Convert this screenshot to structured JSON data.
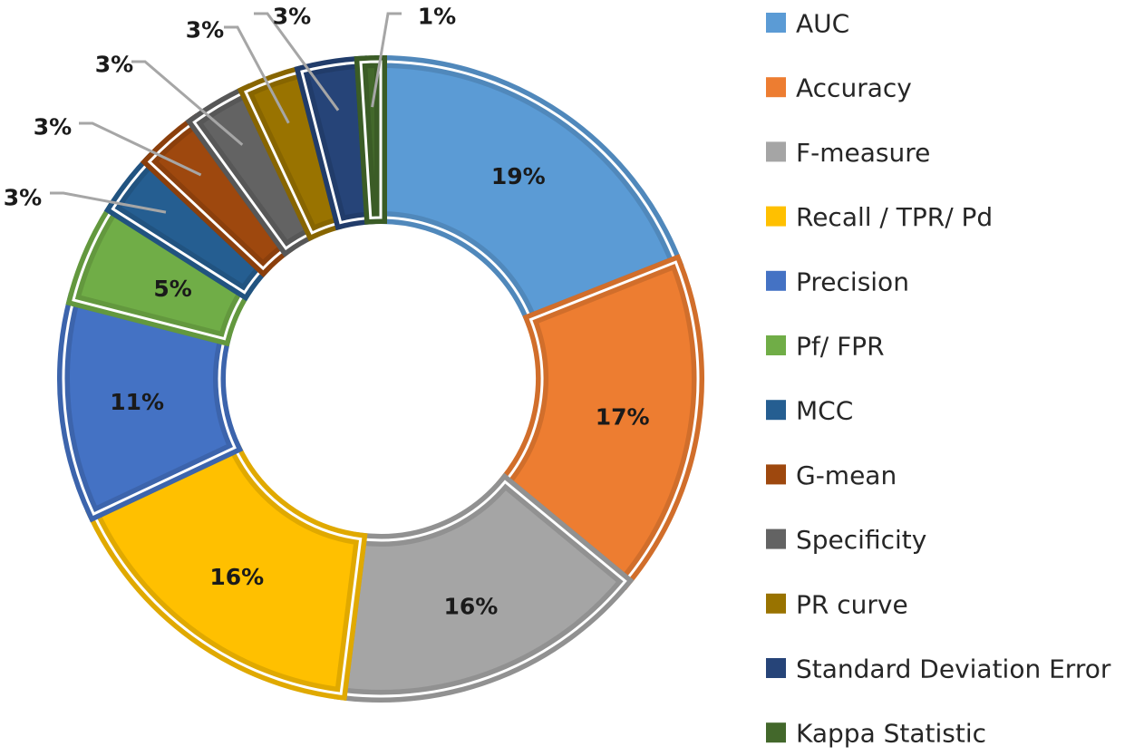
{
  "chart_data": {
    "type": "pie",
    "variant": "donut",
    "title": "",
    "legend_position": "right",
    "series": [
      {
        "name": "AUC",
        "value": 19,
        "label": "19%",
        "color": "#5b9bd5"
      },
      {
        "name": "Accuracy",
        "value": 17,
        "label": "17%",
        "color": "#ed7d31"
      },
      {
        "name": "F-measure",
        "value": 16,
        "label": "16%",
        "color": "#a5a5a5"
      },
      {
        "name": "Recall / TPR/ Pd",
        "value": 16,
        "label": "16%",
        "color": "#ffc000"
      },
      {
        "name": "Precision",
        "value": 11,
        "label": "11%",
        "color": "#4472c4"
      },
      {
        "name": "Pf/ FPR",
        "value": 5,
        "label": "5%",
        "color": "#70ad47"
      },
      {
        "name": "MCC",
        "value": 3,
        "label": "3%",
        "color": "#255e91"
      },
      {
        "name": "G-mean",
        "value": 3,
        "label": "3%",
        "color": "#9e480e"
      },
      {
        "name": "Specificity",
        "value": 3,
        "label": "3%",
        "color": "#636363"
      },
      {
        "name": "PR curve",
        "value": 3,
        "label": "3%",
        "color": "#997300"
      },
      {
        "name": "Standard Deviation Error",
        "value": 3,
        "label": "3%",
        "color": "#264478"
      },
      {
        "name": "Kappa Statistic",
        "value": 1,
        "label": "1%",
        "color": "#43682b"
      }
    ]
  }
}
